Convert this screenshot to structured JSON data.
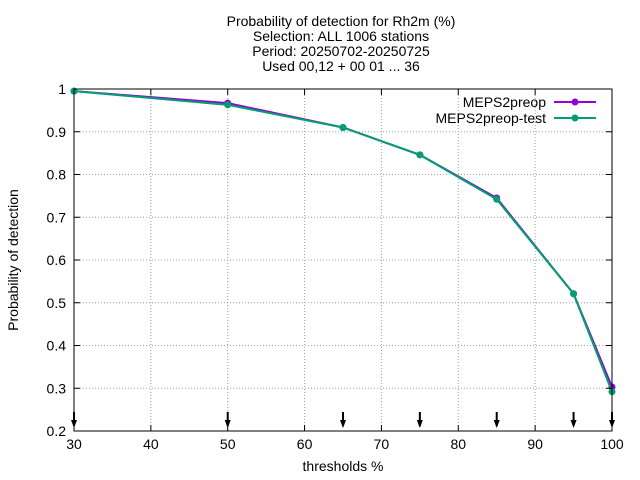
{
  "chart_data": {
    "type": "line",
    "title_lines": [
      "Probability of detection  for Rh2m (%)",
      "Selection: ALL    1006 stations",
      "Period: 20250702-20250725",
      "Used 00,12 + 00 01 ... 36"
    ],
    "xlabel": "thresholds %",
    "ylabel": "Probability of detection",
    "xlim": [
      30,
      100
    ],
    "ylim": [
      0.2,
      1.0
    ],
    "xticks": [
      "30",
      "40",
      "50",
      "60",
      "70",
      "80",
      "90",
      "100"
    ],
    "yticks": [
      "0.2",
      "0.3",
      "0.4",
      "0.5",
      "0.6",
      "0.7",
      "0.8",
      "0.9",
      "1"
    ],
    "grid": true,
    "legend_position": "top-right",
    "x": [
      30,
      50,
      65,
      75,
      85,
      95,
      100
    ],
    "series": [
      {
        "name": "MEPS2preop",
        "color": "#9400d3",
        "values": [
          0.995,
          0.967,
          0.91,
          0.846,
          0.745,
          0.521,
          0.303
        ]
      },
      {
        "name": "MEPS2preop-test",
        "color": "#009e73",
        "values": [
          0.995,
          0.963,
          0.91,
          0.846,
          0.742,
          0.521,
          0.292
        ]
      }
    ],
    "marker_arrows_x": [
      30,
      50,
      65,
      75,
      85,
      95,
      100
    ]
  }
}
